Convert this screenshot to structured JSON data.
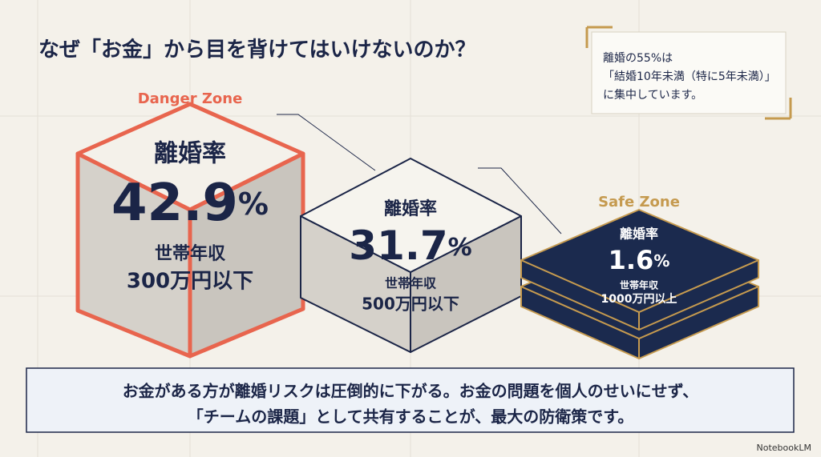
{
  "header": {
    "title": "なぜ「お金」から目を背けてはいけないのか？"
  },
  "note": {
    "lines": [
      "離婚の55%は",
      "「結婚10年未満（特に5年未満）」",
      "に集中しています。"
    ]
  },
  "zones": [
    {
      "label": "Danger Zone",
      "rate_label": "離婚率",
      "rate_value": "42.9",
      "rate_unit": "%",
      "income_label": "世帯年収",
      "income": "300万円以下"
    },
    {
      "rate_label": "離婚率",
      "rate_value": "31.7",
      "rate_unit": "%",
      "income_label": "世帯年収",
      "income": "500万円以下"
    },
    {
      "label": "Safe Zone",
      "rate_label": "離婚率",
      "rate_value": "1.6",
      "rate_unit": "%",
      "income_label": "世帯年収",
      "income": "1000万円以上"
    }
  ],
  "summary": {
    "lines": [
      "お金がある方が離婚リスクは圧倒的に下がる。お金の問題を個人のせいにせず、",
      "「チームの課題」として共有することが、最大の防衛策です。"
    ]
  },
  "footer": {
    "brand": "NotebookLM"
  }
}
